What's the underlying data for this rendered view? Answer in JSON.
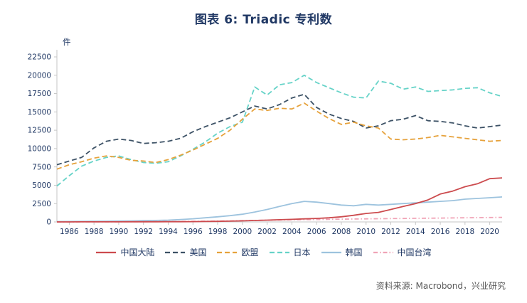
{
  "title": "图表 6:  Triadic 专利数",
  "unit_label": "件",
  "source": "资料来源:  Macrobond，兴业研究",
  "colors": {
    "title": "#203864",
    "axis_text": "#203864",
    "axis_line": "#c6c6c6",
    "source_text": "#595959"
  },
  "chart_data": {
    "type": "line",
    "title": "图表 6: Triadic 专利数",
    "ylabel": "件",
    "ylim": [
      0,
      22500
    ],
    "ytick_step": 2500,
    "xticks": [
      1986,
      1988,
      1990,
      1992,
      1994,
      1996,
      1998,
      2000,
      2002,
      2004,
      2006,
      2008,
      2010,
      2012,
      2014,
      2016,
      2018,
      2020
    ],
    "x": [
      1985,
      1986,
      1987,
      1988,
      1989,
      1990,
      1991,
      1992,
      1993,
      1994,
      1995,
      1996,
      1997,
      1998,
      1999,
      2000,
      2001,
      2002,
      2003,
      2004,
      2005,
      2006,
      2007,
      2008,
      2009,
      2010,
      2011,
      2012,
      2013,
      2014,
      2015,
      2016,
      2017,
      2018,
      2019,
      2020,
      2021
    ],
    "legend_position": "bottom",
    "grid": false,
    "series": [
      {
        "name": "中国大陆",
        "color": "#cc4b4e",
        "dash": "solid",
        "z": 6,
        "values": [
          0,
          0,
          5,
          5,
          10,
          10,
          15,
          20,
          20,
          25,
          30,
          40,
          60,
          80,
          110,
          150,
          190,
          240,
          300,
          350,
          420,
          480,
          560,
          700,
          900,
          1150,
          1300,
          1700,
          2100,
          2500,
          3000,
          3800,
          4200,
          4800,
          5200,
          5900,
          6000
        ]
      },
      {
        "name": "美国",
        "color": "#3d5266",
        "dash": "dashed",
        "z": 2,
        "values": [
          7800,
          8300,
          8800,
          10100,
          11000,
          11300,
          11100,
          10700,
          10800,
          11000,
          11400,
          12300,
          13000,
          13600,
          14200,
          15000,
          15800,
          15400,
          16000,
          16900,
          17400,
          15600,
          14700,
          14100,
          13700,
          12800,
          13100,
          13800,
          14000,
          14500,
          13800,
          13700,
          13500,
          13100,
          12800,
          13000,
          13200
        ]
      },
      {
        "name": "欧盟",
        "color": "#e6a23c",
        "dash": "dashed",
        "z": 3,
        "values": [
          7200,
          7800,
          8200,
          8700,
          9000,
          8800,
          8400,
          8300,
          8100,
          8500,
          9100,
          9800,
          10600,
          11400,
          12500,
          14000,
          15400,
          15200,
          15500,
          15400,
          16200,
          15100,
          14100,
          13300,
          13600,
          13100,
          12800,
          11300,
          11200,
          11300,
          11500,
          11800,
          11600,
          11400,
          11200,
          11000,
          11100
        ]
      },
      {
        "name": "日本",
        "color": "#66d3c8",
        "dash": "dashed",
        "z": 1,
        "values": [
          4900,
          6300,
          7600,
          8300,
          8800,
          9000,
          8500,
          8100,
          8000,
          8200,
          9000,
          9900,
          10900,
          12100,
          13000,
          13600,
          18400,
          17300,
          18700,
          19000,
          20000,
          19000,
          18300,
          17600,
          17000,
          16900,
          19200,
          18900,
          18100,
          18400,
          17800,
          17900,
          18000,
          18200,
          18300,
          17600,
          17100
        ]
      },
      {
        "name": "韩国",
        "color": "#9dc3de",
        "dash": "solid",
        "z": 4,
        "values": [
          50,
          60,
          70,
          90,
          100,
          120,
          140,
          170,
          200,
          240,
          330,
          430,
          560,
          700,
          850,
          1050,
          1350,
          1700,
          2100,
          2500,
          2800,
          2700,
          2500,
          2300,
          2200,
          2400,
          2300,
          2400,
          2500,
          2600,
          2700,
          2800,
          2900,
          3100,
          3200,
          3300,
          3400
        ]
      },
      {
        "name": "中国台湾",
        "color": "#f0a3b6",
        "dash": "dashdot",
        "z": 5,
        "values": [
          0,
          0,
          5,
          10,
          15,
          20,
          25,
          30,
          40,
          50,
          60,
          80,
          100,
          120,
          140,
          170,
          200,
          230,
          260,
          290,
          310,
          330,
          350,
          380,
          400,
          420,
          440,
          460,
          470,
          490,
          500,
          520,
          540,
          560,
          580,
          600,
          620
        ]
      }
    ]
  }
}
